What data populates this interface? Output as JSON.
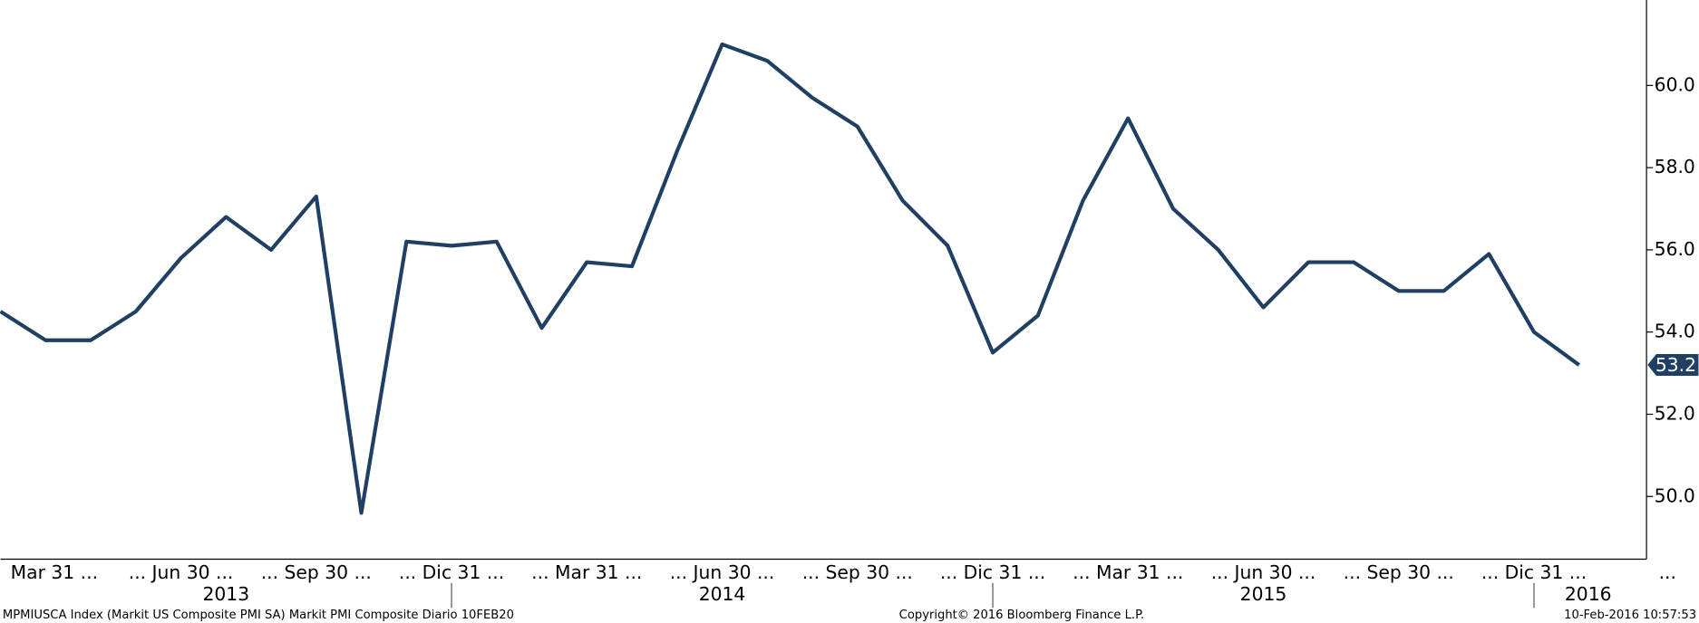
{
  "chart_data": {
    "type": "line",
    "categories": [
      null,
      "Mar 31 ...",
      null,
      null,
      "... Jun 30 ...",
      null,
      null,
      "... Sep 30 ...",
      null,
      null,
      "... Dic 31 ...",
      null,
      null,
      "... Mar 31 ...",
      null,
      null,
      "... Jun 30 ...",
      null,
      null,
      "... Sep 30 ...",
      null,
      null,
      "... Dic 31 ...",
      null,
      null,
      "... Mar 31 ...",
      null,
      null,
      "... Jun 30 ...",
      null,
      null,
      "... Sep 30 ...",
      null,
      null,
      "... Dic 31 ...",
      null
    ],
    "trailing_label": "...",
    "years": [
      "2013",
      "2014",
      "2015",
      "2016"
    ],
    "series": [
      {
        "name": "MPMIUSCA Index",
        "color": "#1f3f63",
        "values": [
          54.5,
          53.8,
          53.8,
          54.5,
          55.8,
          56.8,
          56.0,
          57.3,
          49.6,
          56.2,
          56.1,
          56.2,
          54.1,
          55.7,
          55.6,
          58.4,
          61.0,
          60.6,
          59.7,
          59.0,
          57.2,
          56.1,
          53.5,
          54.4,
          57.2,
          59.2,
          57.0,
          56.0,
          54.6,
          55.7,
          55.7,
          55.0,
          55.0,
          55.9,
          54.0,
          53.2
        ]
      }
    ],
    "ylim": [
      48.5,
      62.0
    ],
    "yticks": [
      {
        "value": 50,
        "label": "50.0"
      },
      {
        "value": 52,
        "label": "52.0"
      },
      {
        "value": 54,
        "label": "54.0"
      },
      {
        "value": 56,
        "label": "56.0"
      },
      {
        "value": 58,
        "label": "58.0"
      },
      {
        "value": 60,
        "label": "60.0"
      }
    ],
    "footer_left": "MPMIUSCA Index (Markit US Composite PMI SA) Markit PMI Composite  Diario 10FEB20",
    "footer_center": "Copyright© 2016 Bloomberg Finance L.P.",
    "footer_right": "10-Feb-2016 10:57:53"
  }
}
